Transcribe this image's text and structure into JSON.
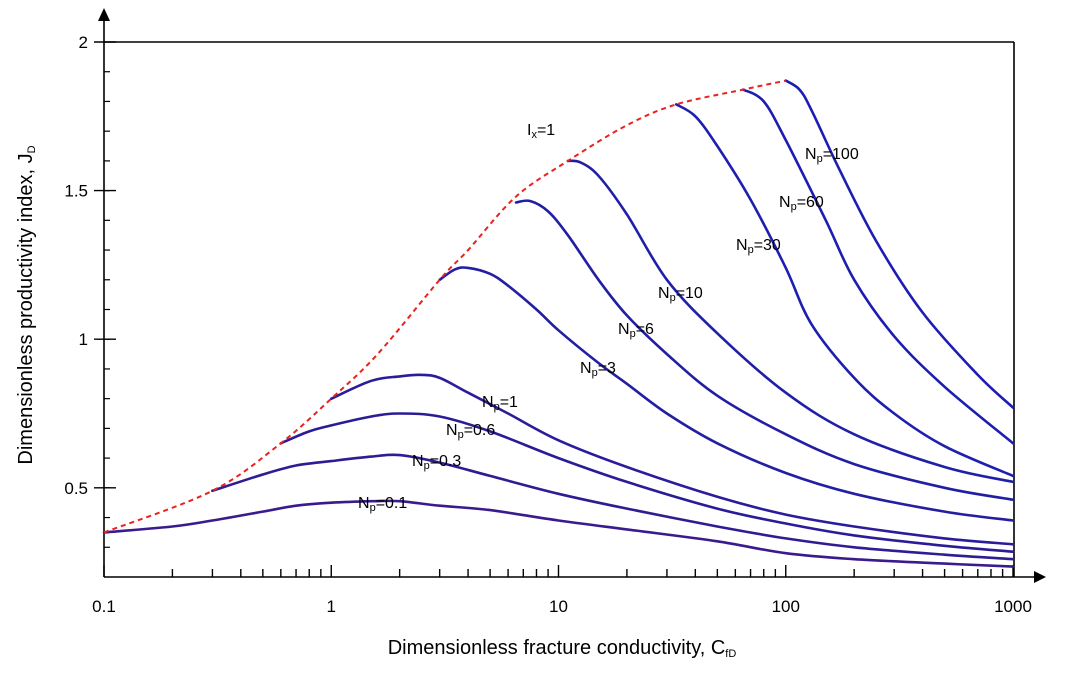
{
  "chart_data": {
    "type": "line",
    "title": "",
    "xlabel": "Dimensionless fracture conductivity, C",
    "xlabel_sub": "fD",
    "ylabel": "Dimensionless productivity index, J",
    "ylabel_sub": "D",
    "xscale": "log",
    "xlim": [
      0.1,
      1000
    ],
    "ylim": [
      0.2,
      2
    ],
    "x_ticks": [
      "0.1",
      "1",
      "10",
      "100",
      "1000"
    ],
    "y_ticks": [
      "0.5",
      "1",
      "1.5",
      "2"
    ],
    "y_tick_values": [
      0.5,
      1,
      1.5,
      2
    ],
    "grid": false,
    "envelope": {
      "name": "Ix=1",
      "label_main": "I",
      "label_sub": "x",
      "label_rest": "=1",
      "style": "dashed",
      "color": "#e8231f",
      "x": [
        0.1,
        0.3,
        0.6,
        1,
        1.6,
        3,
        4,
        6.5,
        11,
        20,
        33,
        65,
        100
      ],
      "y": [
        0.35,
        0.49,
        0.65,
        0.8,
        0.95,
        1.2,
        1.3,
        1.48,
        1.6,
        1.72,
        1.79,
        1.84,
        1.87
      ]
    },
    "series": [
      {
        "name": "Np=0.1",
        "label_main": "N",
        "label_sub": "p",
        "label_rest": "=0.1",
        "x": [
          0.1,
          0.2,
          0.3,
          0.5,
          0.7,
          1,
          1.5,
          2,
          3,
          5,
          10,
          20,
          50,
          100,
          200,
          500,
          1000
        ],
        "y": [
          0.35,
          0.37,
          0.39,
          0.42,
          0.44,
          0.45,
          0.455,
          0.455,
          0.44,
          0.425,
          0.39,
          0.36,
          0.32,
          0.28,
          0.26,
          0.245,
          0.235
        ]
      },
      {
        "name": "Np=0.3",
        "label_main": "N",
        "label_sub": "p",
        "label_rest": "=0.3",
        "x": [
          0.3,
          0.5,
          0.7,
          1,
          1.5,
          2,
          3,
          5,
          10,
          20,
          50,
          100,
          200,
          500,
          1000
        ],
        "y": [
          0.49,
          0.545,
          0.575,
          0.59,
          0.605,
          0.61,
          0.585,
          0.54,
          0.48,
          0.43,
          0.37,
          0.33,
          0.3,
          0.275,
          0.26
        ]
      },
      {
        "name": "Np=0.6",
        "label_main": "N",
        "label_sub": "p",
        "label_rest": "=0.6",
        "x": [
          0.6,
          0.8,
          1,
          1.5,
          2,
          3,
          5,
          10,
          20,
          50,
          100,
          200,
          500,
          1000
        ],
        "y": [
          0.65,
          0.69,
          0.71,
          0.74,
          0.75,
          0.74,
          0.69,
          0.6,
          0.52,
          0.43,
          0.38,
          0.34,
          0.305,
          0.285
        ]
      },
      {
        "name": "Np=1",
        "label_main": "N",
        "label_sub": "p",
        "label_rest": "=1",
        "x": [
          1,
          1.5,
          2,
          2.5,
          3,
          4,
          6,
          10,
          20,
          50,
          100,
          200,
          500,
          1000
        ],
        "y": [
          0.8,
          0.86,
          0.875,
          0.88,
          0.87,
          0.82,
          0.75,
          0.66,
          0.57,
          0.47,
          0.41,
          0.37,
          0.33,
          0.31
        ]
      },
      {
        "name": "Np=3",
        "label_main": "N",
        "label_sub": "p",
        "label_rest": "=3",
        "x": [
          3,
          3.5,
          4,
          5,
          6,
          8,
          10,
          15,
          20,
          30,
          50,
          100,
          200,
          500,
          1000
        ],
        "y": [
          1.2,
          1.235,
          1.24,
          1.22,
          1.18,
          1.1,
          1.03,
          0.92,
          0.85,
          0.75,
          0.65,
          0.55,
          0.48,
          0.42,
          0.39
        ]
      },
      {
        "name": "Np=6",
        "label_main": "N",
        "label_sub": "p",
        "label_rest": "=6",
        "x": [
          6.5,
          7.5,
          9,
          11,
          15,
          20,
          30,
          50,
          100,
          200,
          500,
          1000
        ],
        "y": [
          1.46,
          1.465,
          1.43,
          1.35,
          1.2,
          1.08,
          0.95,
          0.81,
          0.68,
          0.58,
          0.5,
          0.46
        ]
      },
      {
        "name": "Np=10",
        "label_main": "N",
        "label_sub": "p",
        "label_rest": "=10",
        "x": [
          11,
          12.5,
          15,
          20,
          30,
          50,
          100,
          200,
          500,
          1000
        ],
        "y": [
          1.6,
          1.595,
          1.55,
          1.42,
          1.2,
          1.02,
          0.82,
          0.68,
          0.57,
          0.52
        ]
      },
      {
        "name": "Np=30",
        "label_main": "N",
        "label_sub": "p",
        "label_rest": "=30",
        "x": [
          33,
          40,
          50,
          70,
          100,
          130,
          200,
          300,
          500,
          1000
        ],
        "y": [
          1.79,
          1.75,
          1.65,
          1.47,
          1.24,
          1.05,
          0.87,
          0.75,
          0.64,
          0.54
        ]
      },
      {
        "name": "Np=60",
        "label_main": "N",
        "label_sub": "p",
        "label_rest": "=60",
        "x": [
          65,
          80,
          100,
          150,
          200,
          300,
          500,
          1000
        ],
        "y": [
          1.84,
          1.8,
          1.67,
          1.4,
          1.2,
          1.01,
          0.84,
          0.65
        ]
      },
      {
        "name": "Np=100",
        "label_main": "N",
        "label_sub": "p",
        "label_rest": "=100",
        "x": [
          100,
          115,
          130,
          170,
          250,
          400,
          700,
          1000
        ],
        "y": [
          1.87,
          1.84,
          1.77,
          1.58,
          1.33,
          1.09,
          0.88,
          0.77
        ]
      }
    ],
    "color_range": [
      "#1d1db4",
      "#3a1a8c"
    ]
  }
}
